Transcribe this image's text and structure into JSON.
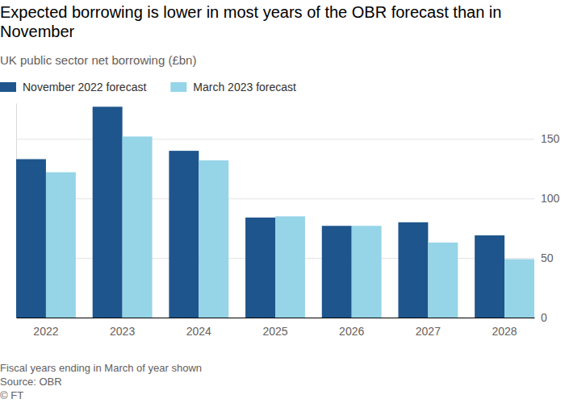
{
  "chart_data": {
    "type": "bar",
    "title": "Expected borrowing is lower in most years of the OBR forecast than in November",
    "subtitle": "UK public sector net borrowing (£bn)",
    "categories": [
      "2022",
      "2023",
      "2024",
      "2025",
      "2026",
      "2027",
      "2028"
    ],
    "series": [
      {
        "name": "November 2022 forecast",
        "color": "#1e558c",
        "values": [
          133,
          177,
          140,
          84,
          77,
          80,
          69
        ]
      },
      {
        "name": "March 2023 forecast",
        "color": "#96d4e8",
        "values": [
          122,
          152,
          132,
          85,
          77,
          63,
          49
        ]
      }
    ],
    "ylim": [
      0,
      180
    ],
    "yticks": [
      0,
      50,
      100,
      150
    ],
    "grid": true,
    "legend": "top-left",
    "footnote": "Fiscal years ending in March of year shown",
    "source": "Source: OBR",
    "credit": "© FT"
  }
}
